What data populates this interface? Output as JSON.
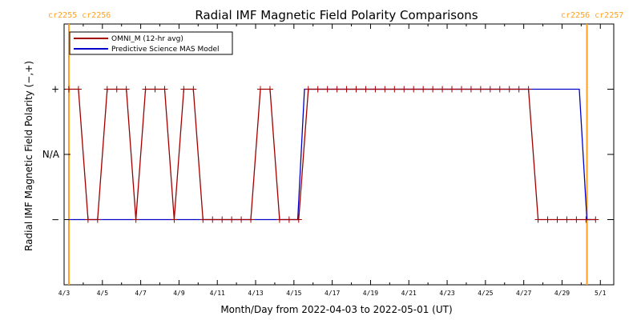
{
  "chart_data": {
    "type": "line",
    "title": "Radial IMF Magnetic Field Polarity Comparisons",
    "xlabel": "Month/Day from 2022-04-03 to 2022-05-01 (UT)",
    "ylabel": "Radial IMF Magnetic Field Polarity (−,+)",
    "x_tick_labels": [
      "4/3",
      "4/5",
      "4/7",
      "4/9",
      "4/11",
      "4/13",
      "4/15",
      "4/17",
      "4/19",
      "4/21",
      "4/23",
      "4/25",
      "4/27",
      "4/29",
      "5/1"
    ],
    "x_tick_days": [
      0,
      2,
      4,
      6,
      8,
      10,
      12,
      14,
      16,
      18,
      20,
      22,
      24,
      26,
      28
    ],
    "xlim_days": [
      0,
      28.7
    ],
    "y_tick_labels": [
      "+",
      "N/A",
      "−"
    ],
    "y_tick_values": [
      1,
      0,
      -1
    ],
    "ylim": [
      -2,
      2
    ],
    "rotation_labels": {
      "left": "cr2255 cr2256",
      "right": "cr2256 cr2257"
    },
    "rotation_lines_days": [
      0.25,
      27.3
    ],
    "colors": {
      "omni": "#a00000",
      "mas": "#0000c8",
      "rotation": "#ffa020"
    },
    "series": [
      {
        "name": "OMNI_M (12-hr avg)",
        "x_days": [
          0.25,
          0.75,
          1.25,
          1.75,
          2.25,
          2.75,
          3.25,
          3.75,
          4.25,
          4.75,
          5.25,
          5.75,
          6.25,
          6.75,
          7.25,
          7.75,
          8.25,
          8.75,
          9.25,
          9.75,
          10.25,
          10.75,
          11.25,
          11.75,
          12.25,
          12.75,
          13.25,
          13.75,
          14.25,
          14.75,
          15.25,
          15.75,
          16.25,
          16.75,
          17.25,
          17.75,
          18.25,
          18.75,
          19.25,
          19.75,
          20.25,
          20.75,
          21.25,
          21.75,
          22.25,
          22.75,
          23.25,
          23.75,
          24.25,
          24.75,
          25.25,
          25.75,
          26.25,
          26.75,
          27.25,
          27.75
        ],
        "y": [
          1,
          1,
          -1,
          -1,
          1,
          1,
          1,
          -1,
          1,
          1,
          1,
          -1,
          1,
          1,
          -1,
          -1,
          -1,
          -1,
          -1,
          -1,
          1,
          1,
          -1,
          -1,
          -1,
          1,
          1,
          1,
          1,
          1,
          1,
          1,
          1,
          1,
          1,
          1,
          1,
          1,
          1,
          1,
          1,
          1,
          1,
          1,
          1,
          1,
          1,
          1,
          1,
          -1,
          -1,
          -1,
          -1,
          -1,
          -1,
          -1
        ]
      },
      {
        "name": "Predictive Science MAS Model",
        "x_days": [
          0.25,
          12.2,
          12.55,
          26.9,
          27.3,
          27.75
        ],
        "y": [
          -1,
          -1,
          1,
          1,
          -1,
          -1
        ]
      }
    ]
  }
}
